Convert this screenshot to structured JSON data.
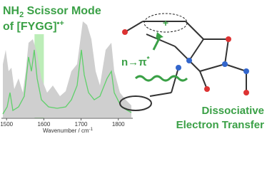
{
  "title": {
    "line1": [
      "NH",
      "2",
      " Scissor Mode"
    ],
    "line2": [
      "of [FYGG]",
      "•+"
    ]
  },
  "spectrum": {
    "xticks": [
      1500,
      1600,
      1700,
      1800
    ],
    "xlim": [
      1490,
      1835
    ],
    "highlight": [
      1575,
      1600
    ],
    "xlabel": [
      "Wavenumber / cm",
      "-1"
    ]
  },
  "molecule": {
    "ring_charge": "+",
    "transition": [
      "n→π",
      "*"
    ]
  },
  "caption": [
    "Dissociative",
    "Electron Transfer"
  ]
}
